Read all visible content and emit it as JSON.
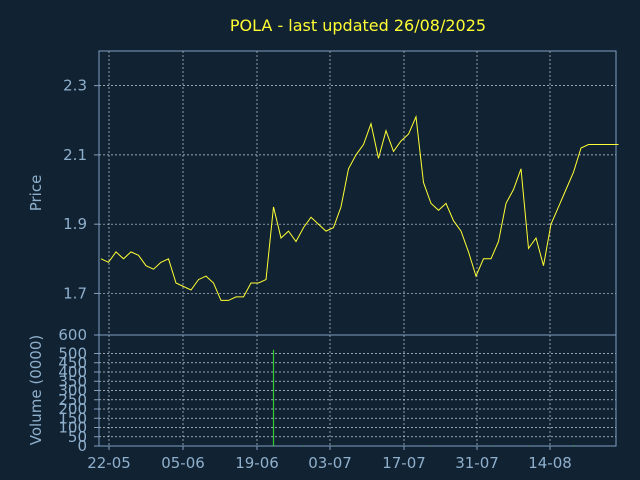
{
  "title": "POLA - last updated 26/08/2025",
  "colors": {
    "background": "#112233",
    "frame": "#7f9fbf",
    "grid": "#c8d0d8",
    "text_title": "#ffff33",
    "text_axis": "#8fb0cc",
    "price_line": "#ffff33",
    "volume_bar": "#33cc33"
  },
  "chart_data": [
    {
      "type": "line",
      "ylabel": "Price",
      "ylim": [
        1.58,
        2.4
      ],
      "yticks": [
        "1.7",
        "1.9",
        "2.1",
        "2.3"
      ],
      "grid": true,
      "series": [
        {
          "x": [
            0,
            1,
            2,
            3,
            4,
            5,
            6,
            7,
            8,
            9,
            10,
            11,
            12,
            13,
            14,
            15,
            16,
            17,
            18,
            19,
            20,
            21,
            22,
            23,
            24,
            25,
            26,
            27,
            28,
            29,
            30,
            31,
            32,
            33,
            34,
            35,
            36,
            37,
            38,
            39,
            40,
            41,
            42,
            43,
            44,
            45,
            46,
            47,
            48,
            49,
            50,
            51,
            52,
            53,
            54,
            55,
            56,
            57,
            58,
            59,
            60,
            61,
            62,
            63,
            64,
            65,
            66,
            67,
            68,
            69
          ],
          "values": [
            1.8,
            1.79,
            1.82,
            1.8,
            1.82,
            1.81,
            1.78,
            1.77,
            1.79,
            1.8,
            1.73,
            1.72,
            1.71,
            1.74,
            1.75,
            1.73,
            1.68,
            1.68,
            1.69,
            1.69,
            1.73,
            1.73,
            1.74,
            1.95,
            1.86,
            1.88,
            1.85,
            1.89,
            1.92,
            1.9,
            1.88,
            1.89,
            1.95,
            2.06,
            2.1,
            2.13,
            2.19,
            2.09,
            2.17,
            2.11,
            2.14,
            2.16,
            2.21,
            2.02,
            1.96,
            1.94,
            1.96,
            1.91,
            1.88,
            1.82,
            1.75,
            1.8,
            1.8,
            1.85,
            1.96,
            2.0,
            2.06,
            1.83,
            1.86,
            1.78,
            1.9,
            1.95,
            2.0,
            2.05,
            2.12,
            2.13,
            2.13,
            2.13,
            2.13,
            2.13
          ]
        }
      ]
    },
    {
      "type": "bar",
      "ylabel": "Volume (0000)",
      "ylim": [
        0,
        600
      ],
      "yticks": [
        "0",
        "50",
        "100",
        "150",
        "200",
        "250",
        "300",
        "350",
        "400",
        "450",
        "500",
        "600"
      ],
      "xticks": [
        "22-05",
        "05-06",
        "19-06",
        "03-07",
        "17-07",
        "31-07",
        "14-08"
      ],
      "grid": true,
      "series": [
        {
          "x": [
            23,
            27,
            31,
            44,
            52,
            57,
            63
          ],
          "values": [
            520,
            3,
            2,
            2,
            3,
            2,
            4
          ]
        }
      ]
    }
  ]
}
